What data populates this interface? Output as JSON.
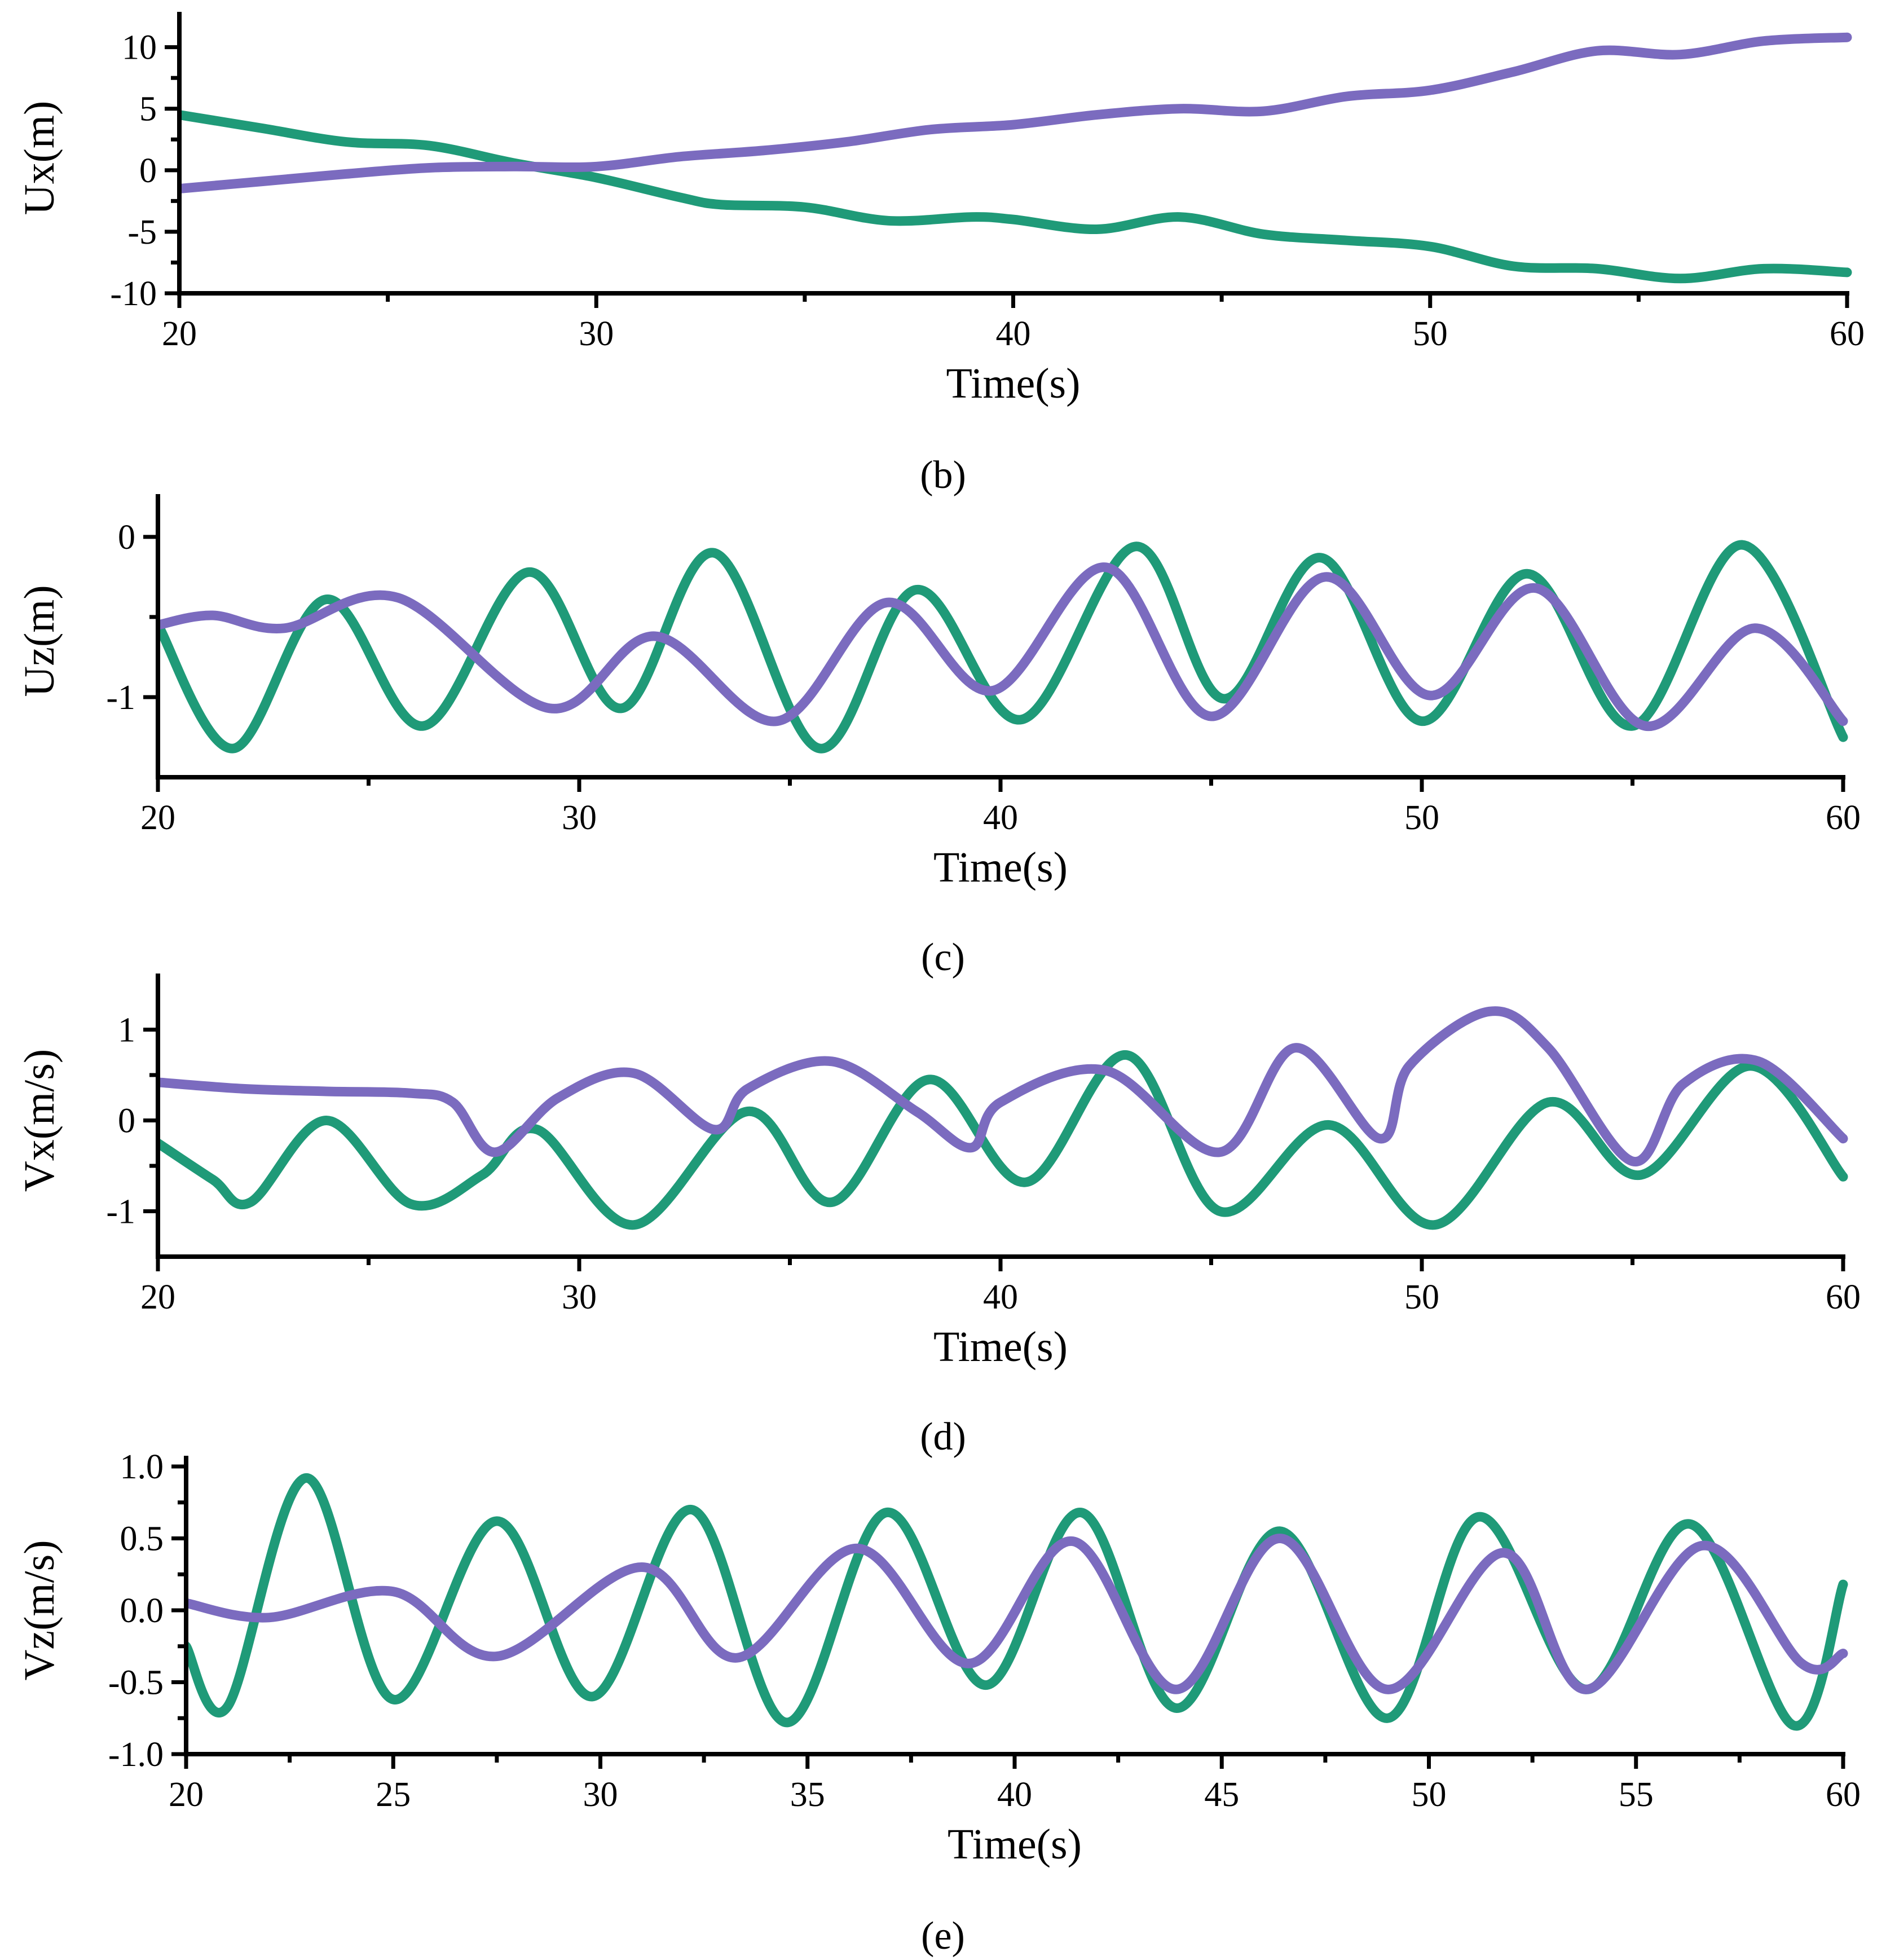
{
  "colors": {
    "series_a": "#1f9a78",
    "series_b": "#7b6bbf"
  },
  "chart_data": [
    {
      "type": "line",
      "panel_label": "",
      "xlabel": "Time(s)",
      "ylabel": "Ux(m)",
      "xlim": [
        20,
        60
      ],
      "ylim": [
        -10,
        12
      ],
      "xticks": [
        20,
        30,
        40,
        50,
        60
      ],
      "xtick_labels": [
        "20",
        "30",
        "40",
        "50",
        "60"
      ],
      "yticks": [
        10,
        5,
        0,
        -5,
        -10
      ],
      "ytick_labels": [
        "10",
        "5",
        "0",
        "-5",
        "-10"
      ],
      "series": [
        {
          "name": "green",
          "color": "#1f9a78",
          "x": [
            20,
            22,
            24,
            26,
            28,
            30,
            32,
            33,
            35,
            37,
            39,
            40,
            42,
            44,
            46,
            48,
            50,
            52,
            54,
            56,
            58,
            60
          ],
          "y": [
            4.5,
            3.4,
            2.3,
            2.0,
            0.6,
            -0.6,
            -2.2,
            -2.8,
            -3.0,
            -4.1,
            -3.8,
            -4.0,
            -4.8,
            -3.8,
            -5.2,
            -5.7,
            -6.2,
            -7.8,
            -8.0,
            -8.8,
            -8.0,
            -8.3
          ]
        },
        {
          "name": "purple",
          "color": "#7b6bbf",
          "x": [
            20,
            22,
            24,
            26,
            28,
            30,
            32,
            34,
            36,
            38,
            40,
            42,
            44,
            46,
            48,
            50,
            52,
            54,
            56,
            58,
            60
          ],
          "y": [
            -1.5,
            -0.9,
            -0.3,
            0.2,
            0.3,
            0.3,
            1.1,
            1.6,
            2.3,
            3.3,
            3.7,
            4.5,
            5.0,
            4.8,
            6.0,
            6.5,
            8.0,
            9.7,
            9.4,
            10.5,
            10.8
          ]
        }
      ]
    },
    {
      "type": "line",
      "panel_label": "(b)",
      "xlabel": "Time(s)",
      "ylabel": "Uz(m)",
      "xlim": [
        20,
        60
      ],
      "ylim": [
        -1.5,
        0.2
      ],
      "xticks": [
        20,
        30,
        40,
        50,
        60
      ],
      "xtick_labels": [
        "20",
        "30",
        "40",
        "50",
        "60"
      ],
      "yticks": [
        0,
        -1
      ],
      "ytick_labels": [
        "0",
        "-1"
      ],
      "series": [
        {
          "name": "green",
          "color": "#1f9a78",
          "x": [
            20,
            21.8,
            24.0,
            26.3,
            28.8,
            31.0,
            33.2,
            35.7,
            38.0,
            40.5,
            43.2,
            45.3,
            47.6,
            50.0,
            52.5,
            55.0,
            57.6,
            60
          ],
          "y": [
            -0.55,
            -1.32,
            -0.39,
            -1.18,
            -0.22,
            -1.07,
            -0.1,
            -1.32,
            -0.33,
            -1.14,
            -0.06,
            -1.01,
            -0.13,
            -1.15,
            -0.23,
            -1.18,
            -0.05,
            -1.25
          ]
        },
        {
          "name": "purple",
          "color": "#7b6bbf",
          "x": [
            20,
            21.3,
            23.0,
            25.7,
            29.3,
            31.8,
            34.7,
            37.3,
            39.8,
            42.5,
            45.0,
            47.7,
            50.2,
            52.7,
            55.3,
            57.9,
            60
          ],
          "y": [
            -0.55,
            -0.49,
            -0.57,
            -0.38,
            -1.07,
            -0.62,
            -1.15,
            -0.41,
            -0.96,
            -0.19,
            -1.12,
            -0.25,
            -0.99,
            -0.32,
            -1.18,
            -0.57,
            -1.15
          ]
        }
      ]
    },
    {
      "type": "line",
      "panel_label": "(c)",
      "xlabel": "Time(s)",
      "ylabel": "Vx(m/s)",
      "xlim": [
        20,
        60
      ],
      "ylim": [
        -1.5,
        1.5
      ],
      "xticks": [
        20,
        30,
        40,
        50,
        60
      ],
      "xtick_labels": [
        "20",
        "30",
        "40",
        "50",
        "60"
      ],
      "yticks": [
        1,
        0,
        -1
      ],
      "ytick_labels": [
        "1",
        "0",
        "-1"
      ],
      "series": [
        {
          "name": "green",
          "color": "#1f9a78",
          "x": [
            20,
            21.3,
            22.2,
            24.0,
            26.0,
            27.7,
            29.0,
            31.3,
            34.0,
            36.0,
            38.3,
            40.6,
            43.0,
            45.2,
            47.8,
            50.3,
            53.0,
            55.2,
            57.8,
            60
          ],
          "y": [
            -0.25,
            -0.65,
            -0.9,
            0.0,
            -0.92,
            -0.6,
            -0.1,
            -1.15,
            0.1,
            -0.9,
            0.45,
            -0.68,
            0.72,
            -1.0,
            -0.05,
            -1.15,
            0.2,
            -0.6,
            0.6,
            -0.62
          ]
        },
        {
          "name": "purple",
          "color": "#7b6bbf",
          "x": [
            20,
            22,
            24,
            26,
            27,
            28,
            29.5,
            31.3,
            33.2,
            34,
            36,
            38,
            39.3,
            40,
            42.5,
            45.2,
            47.0,
            49.0,
            49.7,
            51.6,
            53.0,
            55.0,
            56.2,
            58.0,
            60
          ],
          "y": [
            0.42,
            0.35,
            0.32,
            0.3,
            0.2,
            -0.35,
            0.25,
            0.52,
            -0.1,
            0.35,
            0.65,
            0.1,
            -0.3,
            0.2,
            0.55,
            -0.35,
            0.8,
            -0.2,
            0.6,
            1.2,
            0.8,
            -0.45,
            0.4,
            0.65,
            -0.2
          ]
        }
      ]
    },
    {
      "type": "line",
      "panel_label": "(d)",
      "xlabel": "Time(s)",
      "ylabel": "Vz(m/s)",
      "xlim": [
        20,
        60
      ],
      "ylim": [
        -1.0,
        1.0
      ],
      "xticks": [
        20,
        25,
        30,
        35,
        40,
        45,
        50,
        55,
        60
      ],
      "xtick_labels": [
        "20",
        "25",
        "30",
        "35",
        "40",
        "45",
        "50",
        "55",
        "60"
      ],
      "yticks": [
        1.0,
        0.5,
        0.0,
        -0.5,
        -1.0
      ],
      "ytick_labels": [
        "1.0",
        "0.5",
        "0.0",
        "-0.5",
        "-1.0"
      ],
      "series": [
        {
          "name": "green",
          "color": "#1f9a78",
          "x": [
            20,
            21.0,
            22.9,
            25.0,
            27.5,
            29.8,
            32.2,
            34.5,
            36.9,
            39.3,
            41.6,
            43.9,
            46.4,
            49.0,
            51.2,
            53.8,
            56.3,
            58.8,
            60
          ],
          "y": [
            -0.25,
            -0.67,
            0.92,
            -0.62,
            0.62,
            -0.6,
            0.7,
            -0.78,
            0.68,
            -0.52,
            0.68,
            -0.68,
            0.55,
            -0.75,
            0.65,
            -0.55,
            0.6,
            -0.8,
            0.18
          ]
        },
        {
          "name": "purple",
          "color": "#7b6bbf",
          "x": [
            20,
            22,
            25,
            27.5,
            31,
            33.3,
            36.2,
            38.9,
            41.4,
            43.9,
            46.4,
            49.0,
            51.8,
            53.8,
            56.6,
            59.0,
            60
          ],
          "y": [
            0.05,
            -0.05,
            0.13,
            -0.32,
            0.3,
            -0.33,
            0.43,
            -0.37,
            0.48,
            -0.55,
            0.5,
            -0.55,
            0.4,
            -0.55,
            0.45,
            -0.37,
            -0.3
          ]
        }
      ]
    }
  ],
  "caption_labels": [
    "(e)"
  ]
}
